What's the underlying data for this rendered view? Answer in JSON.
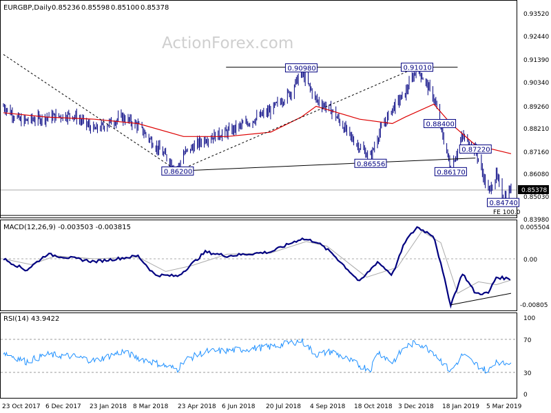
{
  "chart_data": [
    {
      "type": "ohlc",
      "title": "EURGBP,Daily",
      "ohlc_readout": [
        "0.85236",
        "0.85598",
        "0.85100",
        "0.85378"
      ],
      "watermark": "ActionForex.com",
      "ylim": [
        0.8398,
        0.9352
      ],
      "y_ticks": [
        "0.93520",
        "0.92440",
        "0.91390",
        "0.90340",
        "0.89260",
        "0.88210",
        "0.87160",
        "0.86080",
        "0.85030",
        "0.83980"
      ],
      "current_price": "0.85378",
      "fe_label": "FE 100.0",
      "colors": {
        "bars": "#000080",
        "moving_average": "#dd0000",
        "trendline": "#000000",
        "annotation": "#000080"
      },
      "x_ticks": [
        "23 Oct 2017",
        "6 Dec 2017",
        "23 Jan 2018",
        "8 Mar 2018",
        "23 Apr 2018",
        "6 Jun 2018",
        "20 Jul 2018",
        "4 Sep 2018",
        "18 Oct 2018",
        "3 Dec 2018",
        "18 Jan 2019",
        "5 Mar 2019"
      ],
      "annotations": [
        {
          "label": "0.90980",
          "date": "20 Aug 2018",
          "value": 0.9098
        },
        {
          "label": "0.91010",
          "date": "15 Dec 2018",
          "value": 0.9101
        },
        {
          "label": "0.88400",
          "date": "7 Jan 2019",
          "value": 0.884
        },
        {
          "label": "0.87220",
          "date": "12 Feb 2019",
          "value": 0.8722
        },
        {
          "label": "0.86200",
          "date": "17 Apr 2018",
          "value": 0.862
        },
        {
          "label": "0.86556",
          "date": "29 Oct 2018",
          "value": 0.86556
        },
        {
          "label": "0.86170",
          "date": "18 Jan 2019",
          "value": 0.8617
        },
        {
          "label": "0.84740",
          "date": "12 Mar 2019",
          "value": 0.8474
        }
      ],
      "price_path": [
        [
          "23 Oct 2017",
          0.892
        ],
        [
          "10 Nov 2017",
          0.885
        ],
        [
          "6 Dec 2017",
          0.887
        ],
        [
          "1 Jan 2018",
          0.888
        ],
        [
          "23 Jan 2018",
          0.881
        ],
        [
          "20 Feb 2018",
          0.887
        ],
        [
          "8 Mar 2018",
          0.883
        ],
        [
          "25 Mar 2018",
          0.874
        ],
        [
          "17 Apr 2018",
          0.863
        ],
        [
          "23 Apr 2018",
          0.87
        ],
        [
          "15 May 2018",
          0.877
        ],
        [
          "6 Jun 2018",
          0.88
        ],
        [
          "25 Jun 2018",
          0.884
        ],
        [
          "20 Jul 2018",
          0.89
        ],
        [
          "10 Aug 2018",
          0.899
        ],
        [
          "20 Aug 2018",
          0.908
        ],
        [
          "4 Sep 2018",
          0.895
        ],
        [
          "20 Sep 2018",
          0.89
        ],
        [
          "10 Oct 2018",
          0.877
        ],
        [
          "29 Oct 2018",
          0.868
        ],
        [
          "5 Nov 2018",
          0.878
        ],
        [
          "20 Nov 2018",
          0.891
        ],
        [
          "3 Dec 2018",
          0.898
        ],
        [
          "15 Dec 2018",
          0.91
        ],
        [
          "1 Jan 2019",
          0.896
        ],
        [
          "7 Jan 2019",
          0.884
        ],
        [
          "18 Jan 2019",
          0.863
        ],
        [
          "30 Jan 2019",
          0.878
        ],
        [
          "12 Feb 2019",
          0.872
        ],
        [
          "25 Feb 2019",
          0.852
        ],
        [
          "5 Mar 2019",
          0.86
        ],
        [
          "12 Mar 2019",
          0.849
        ],
        [
          "20 Mar 2019",
          0.854
        ]
      ],
      "ma_path": [
        [
          "23 Oct 2017",
          0.889
        ],
        [
          "6 Dec 2017",
          0.887
        ],
        [
          "23 Jan 2018",
          0.886
        ],
        [
          "8 Mar 2018",
          0.884
        ],
        [
          "23 Apr 2018",
          0.878
        ],
        [
          "6 Jun 2018",
          0.878
        ],
        [
          "20 Jul 2018",
          0.88
        ],
        [
          "20 Aug 2018",
          0.887
        ],
        [
          "4 Sep 2018",
          0.892
        ],
        [
          "18 Oct 2018",
          0.886
        ],
        [
          "20 Nov 2018",
          0.884
        ],
        [
          "3 Dec 2018",
          0.887
        ],
        [
          "1 Jan 2019",
          0.893
        ],
        [
          "18 Jan 2019",
          0.884
        ],
        [
          "12 Feb 2019",
          0.874
        ],
        [
          "20 Mar 2019",
          0.87
        ]
      ]
    },
    {
      "type": "line",
      "title": "MACD(12,26,9) -0.003503 -0.003815",
      "ylim": [
        -0.0094,
        0.0062
      ],
      "y_ticks": [
        "0.005504",
        "0.00",
        "-0.00805"
      ],
      "colors": {
        "macd": "#000080",
        "signal": "#aaaaaa"
      },
      "series": [
        {
          "values": [
            [
              "23 Oct 2017",
              0.0
            ],
            [
              "15 Nov 2017",
              -0.002
            ],
            [
              "6 Dec 2017",
              0.0008
            ],
            [
              "23 Jan 2018",
              -0.0005
            ],
            [
              "8 Mar 2018",
              0.0005
            ],
            [
              "25 Mar 2018",
              -0.0028
            ],
            [
              "17 Apr 2018",
              -0.003
            ],
            [
              "23 Apr 2018",
              -0.0022
            ],
            [
              "15 May 2018",
              0.0012
            ],
            [
              "6 Jun 2018",
              0.0005
            ],
            [
              "20 Jul 2018",
              0.0012
            ],
            [
              "20 Aug 2018",
              0.0035
            ],
            [
              "4 Sep 2018",
              0.003
            ],
            [
              "20 Sep 2018",
              0.001
            ],
            [
              "18 Oct 2018",
              -0.004
            ],
            [
              "5 Nov 2018",
              -0.0005
            ],
            [
              "20 Nov 2018",
              -0.0028
            ],
            [
              "3 Dec 2018",
              0.003
            ],
            [
              "15 Dec 2018",
              0.0055
            ],
            [
              "1 Jan 2019",
              0.004
            ],
            [
              "18 Jan 2019",
              -0.008
            ],
            [
              "30 Jan 2019",
              -0.0025
            ],
            [
              "12 Feb 2019",
              -0.006
            ],
            [
              "25 Feb 2019",
              -0.006
            ],
            [
              "5 Mar 2019",
              -0.0032
            ],
            [
              "20 Mar 2019",
              -0.0035
            ]
          ]
        },
        {
          "values": [
            [
              "23 Oct 2017",
              0.0
            ],
            [
              "20 Nov 2017",
              -0.001
            ],
            [
              "15 Dec 2017",
              0.0005
            ],
            [
              "23 Jan 2018",
              0.0
            ],
            [
              "8 Mar 2018",
              0.0003
            ],
            [
              "5 Apr 2018",
              -0.0022
            ],
            [
              "1 May 2018",
              -0.0012
            ],
            [
              "6 Jun 2018",
              0.0008
            ],
            [
              "20 Jul 2018",
              0.001
            ],
            [
              "25 Aug 2018",
              0.003
            ],
            [
              "15 Sep 2018",
              0.0022
            ],
            [
              "25 Oct 2018",
              -0.0032
            ],
            [
              "25 Nov 2018",
              -0.0015
            ],
            [
              "20 Dec 2018",
              0.0048
            ],
            [
              "8 Jan 2019",
              0.0028
            ],
            [
              "25 Jan 2019",
              -0.006
            ],
            [
              "15 Feb 2019",
              -0.004
            ],
            [
              "5 Mar 2019",
              -0.0045
            ],
            [
              "20 Mar 2019",
              -0.0037
            ]
          ]
        }
      ],
      "trendline": [
        [
          "18 Jan 2019",
          -0.008
        ],
        [
          "20 Mar 2019",
          -0.006
        ]
      ]
    },
    {
      "type": "line",
      "title": "RSI(14) 43.9422",
      "ylim": [
        0,
        100
      ],
      "y_ticks": [
        "100",
        "70",
        "30",
        "0"
      ],
      "levels": [
        70,
        30
      ],
      "colors": {
        "rsi": "#1e90ff"
      },
      "series": [
        {
          "values": [
            [
              "23 Oct 2017",
              55
            ],
            [
              "15 Nov 2017",
              43
            ],
            [
              "6 Dec 2017",
              52
            ],
            [
              "1 Jan 2018",
              50
            ],
            [
              "23 Jan 2018",
              44
            ],
            [
              "20 Feb 2018",
              56
            ],
            [
              "8 Mar 2018",
              48
            ],
            [
              "17 Apr 2018",
              33
            ],
            [
              "23 Apr 2018",
              44
            ],
            [
              "15 May 2018",
              56
            ],
            [
              "6 Jun 2018",
              57
            ],
            [
              "20 Jul 2018",
              62
            ],
            [
              "20 Aug 2018",
              70
            ],
            [
              "4 Sep 2018",
              52
            ],
            [
              "20 Sep 2018",
              56
            ],
            [
              "18 Oct 2018",
              38
            ],
            [
              "29 Oct 2018",
              33
            ],
            [
              "5 Nov 2018",
              56
            ],
            [
              "20 Nov 2018",
              42
            ],
            [
              "3 Dec 2018",
              62
            ],
            [
              "15 Dec 2018",
              68
            ],
            [
              "1 Jan 2019",
              55
            ],
            [
              "18 Jan 2019",
              30
            ],
            [
              "30 Jan 2019",
              52
            ],
            [
              "12 Feb 2019",
              40
            ],
            [
              "25 Feb 2019",
              30
            ],
            [
              "5 Mar 2019",
              45
            ],
            [
              "12 Mar 2019",
              40
            ],
            [
              "20 Mar 2019",
              44
            ]
          ]
        }
      ]
    }
  ]
}
